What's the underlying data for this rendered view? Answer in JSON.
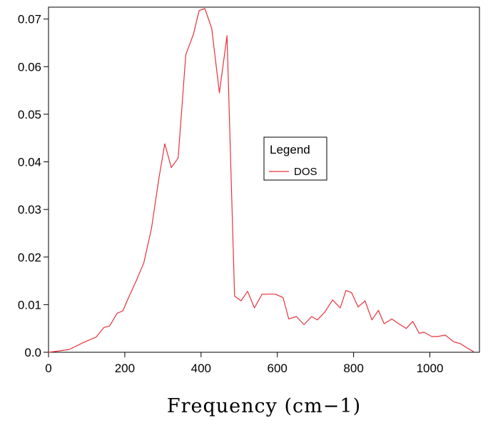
{
  "chart_data": {
    "type": "line",
    "xlabel": "Frequency (cm−1)",
    "ylabel": "",
    "xlim": [
      0,
      1130
    ],
    "ylim": [
      0,
      0.0725
    ],
    "xticks": [
      0,
      200,
      400,
      600,
      800,
      1000
    ],
    "xtick_labels": [
      "0",
      "200",
      "400",
      "600",
      "800",
      "1000"
    ],
    "yticks": [
      0,
      0.01,
      0.02,
      0.03,
      0.04,
      0.05,
      0.06,
      0.07
    ],
    "ytick_labels": [
      "0.0",
      "0.01",
      "0.02",
      "0.03",
      "0.04",
      "0.05",
      "0.06",
      "0.07"
    ],
    "grid": false,
    "legend": {
      "title": "Legend",
      "placement": "center-right"
    },
    "series": [
      {
        "name": "DOS",
        "color": "#e8323c",
        "x": [
          0,
          30,
          55,
          90,
          105,
          125,
          145,
          160,
          180,
          195,
          210,
          230,
          250,
          270,
          290,
          305,
          322,
          340,
          360,
          380,
          395,
          410,
          428,
          448,
          468,
          488,
          505,
          522,
          540,
          560,
          580,
          595,
          615,
          630,
          650,
          670,
          690,
          705,
          725,
          745,
          765,
          780,
          795,
          812,
          830,
          848,
          865,
          880,
          900,
          918,
          938,
          955,
          972,
          985,
          1005,
          1020,
          1040,
          1050,
          1062,
          1080,
          1100,
          1115
        ],
        "y": [
          0,
          0.0003,
          0.0006,
          0.002,
          0.0025,
          0.0032,
          0.0052,
          0.0055,
          0.0082,
          0.0087,
          0.0115,
          0.015,
          0.0188,
          0.026,
          0.0368,
          0.0438,
          0.0388,
          0.0408,
          0.0625,
          0.0668,
          0.0718,
          0.0722,
          0.068,
          0.0545,
          0.0665,
          0.0118,
          0.0108,
          0.0128,
          0.0093,
          0.0122,
          0.0122,
          0.0122,
          0.0115,
          0.007,
          0.0075,
          0.0058,
          0.0075,
          0.0068,
          0.0085,
          0.011,
          0.0093,
          0.013,
          0.0125,
          0.0095,
          0.0108,
          0.0068,
          0.0088,
          0.006,
          0.007,
          0.006,
          0.005,
          0.0065,
          0.004,
          0.0042,
          0.0033,
          0.0033,
          0.0036,
          0.003,
          0.0022,
          0.0018,
          0.0008,
          0.0001
        ]
      }
    ]
  }
}
